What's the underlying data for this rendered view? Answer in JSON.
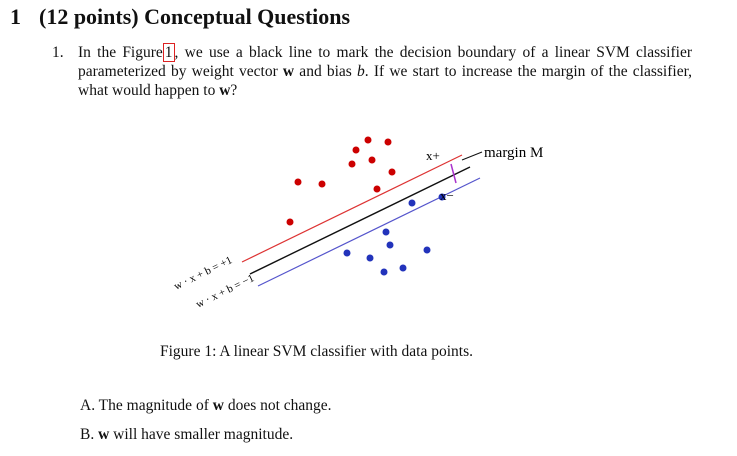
{
  "section": {
    "number": "1",
    "title": "(12 points) Conceptual Questions"
  },
  "question": {
    "number": "1.",
    "text": [
      "In the Figure",
      "1",
      ", we use a black line to mark the decision boundary of a linear SVM classifier parameterized by weight vector ",
      "w",
      " and bias ",
      "b",
      ". If we start to increase the margin of the classifier, what would happen to ",
      "w",
      "?"
    ]
  },
  "figure": {
    "labels": {
      "plus_line": "w · x + b = +1",
      "minus_line": "w · x + b = −1",
      "margin": "margin M",
      "x_plus": "x+",
      "x_minus": "x−"
    },
    "caption": "Figure 1: A linear SVM classifier with data points."
  },
  "options": [
    [
      "A. The magnitude of ",
      "w",
      " does not change."
    ],
    [
      "B. ",
      "w",
      " will have smaller magnitude."
    ]
  ]
}
